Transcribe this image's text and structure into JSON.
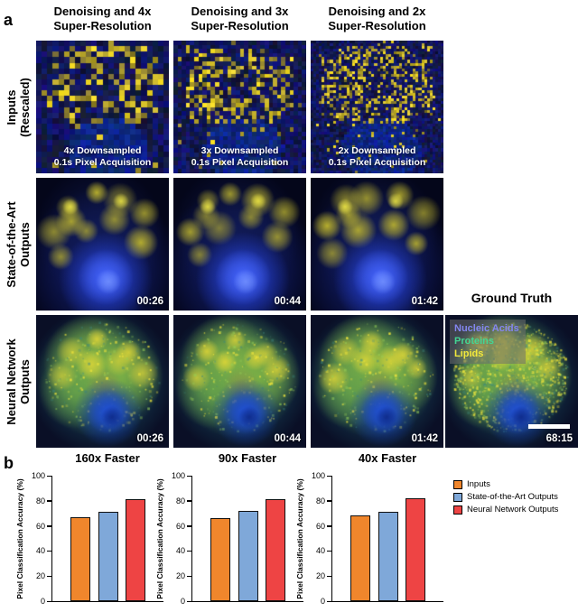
{
  "panel_a": {
    "label": "a",
    "column_headers": [
      {
        "line1": "Denoising and 4x",
        "line2": "Super-Resolution"
      },
      {
        "line1": "Denoising and 3x",
        "line2": "Super-Resolution"
      },
      {
        "line1": "Denoising and 2x",
        "line2": "Super-Resolution"
      }
    ],
    "row_labels": [
      {
        "line1": "Inputs",
        "line2": "(Rescaled)"
      },
      {
        "line1": "State-of-the-Art",
        "line2": "Outputs"
      },
      {
        "line1": "Neural Network",
        "line2": "Outputs"
      }
    ],
    "inputs_row": [
      {
        "overlay_line1": "4x Downsampled",
        "overlay_line2": "0.1s Pixel Acquisition"
      },
      {
        "overlay_line1": "3x Downsampled",
        "overlay_line2": "0.1s Pixel Acquisition"
      },
      {
        "overlay_line1": "2x Downsampled",
        "overlay_line2": "0.1s Pixel Acquisition"
      }
    ],
    "sota_row": [
      {
        "time": "00:26"
      },
      {
        "time": "00:44"
      },
      {
        "time": "01:42"
      }
    ],
    "nn_row": [
      {
        "time": "00:26"
      },
      {
        "time": "00:44"
      },
      {
        "time": "01:42"
      }
    ],
    "ground_truth": {
      "title": "Ground Truth",
      "legend": [
        {
          "label": "Nucleic Acids",
          "color": "#8486f0"
        },
        {
          "label": "Proteins",
          "color": "#43d694"
        },
        {
          "label": "Lipids",
          "color": "#f2e93c"
        }
      ],
      "time": "68:15"
    }
  },
  "panel_b": {
    "label": "b",
    "legend": [
      {
        "label": "Inputs",
        "color": "#f0862c"
      },
      {
        "label": "State-of-the-Art Outputs",
        "color": "#7fa8d9"
      },
      {
        "label": "Neural Network Outputs",
        "color": "#ee4444"
      }
    ]
  },
  "chart_data": [
    {
      "type": "bar",
      "title": "160x Faster",
      "categories": [
        "Inputs",
        "State-of-the-Art Outputs",
        "Neural Network Outputs"
      ],
      "values": [
        67,
        71,
        81
      ],
      "xlabel": "",
      "ylabel": "Pixel Classification Accuracy (%)",
      "ylim": [
        0,
        100
      ],
      "yticks": [
        0,
        20,
        40,
        60,
        80,
        100
      ],
      "grid": false,
      "legend_position": "right"
    },
    {
      "type": "bar",
      "title": "90x Faster",
      "categories": [
        "Inputs",
        "State-of-the-Art Outputs",
        "Neural Network Outputs"
      ],
      "values": [
        66,
        72,
        81
      ],
      "xlabel": "",
      "ylabel": "Pixel Classification Accuracy (%)",
      "ylim": [
        0,
        100
      ],
      "yticks": [
        0,
        20,
        40,
        60,
        80,
        100
      ],
      "grid": false,
      "legend_position": "right"
    },
    {
      "type": "bar",
      "title": "40x Faster",
      "categories": [
        "Inputs",
        "State-of-the-Art Outputs",
        "Neural Network Outputs"
      ],
      "values": [
        68,
        71,
        82
      ],
      "xlabel": "",
      "ylabel": "Pixel Classification Accuracy (%)",
      "ylim": [
        0,
        100
      ],
      "yticks": [
        0,
        20,
        40,
        60,
        80,
        100
      ],
      "grid": false,
      "legend_position": "right"
    }
  ]
}
